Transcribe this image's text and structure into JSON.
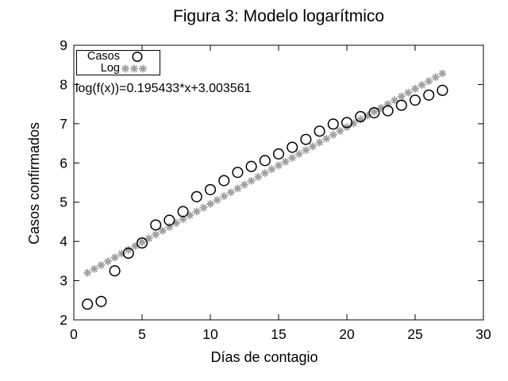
{
  "chart_data": {
    "type": "scatter",
    "title": "Figura 3: Modelo logarítmico",
    "xlabel": "Días de contagio",
    "ylabel": "Casos confirmados",
    "xlim": [
      0,
      30
    ],
    "ylim": [
      2,
      9
    ],
    "xticks": [
      0,
      5,
      10,
      15,
      20,
      25,
      30
    ],
    "yticks": [
      2,
      3,
      4,
      5,
      6,
      7,
      8,
      9
    ],
    "grid": false,
    "legend_position": "top-left",
    "annotation": "log(f(x))=0.195433*x+3.003561",
    "fit": {
      "slope": 0.195433,
      "intercept": 3.003561,
      "x_start": 1,
      "x_end": 27,
      "x_step": 0.5
    },
    "series": [
      {
        "name": "Casos",
        "marker": "open-circle",
        "color": "#000000",
        "x": [
          1,
          2,
          3,
          4,
          5,
          6,
          7,
          8,
          9,
          10,
          11,
          12,
          13,
          14,
          15,
          16,
          17,
          18,
          19,
          20,
          21,
          22,
          23,
          24,
          25,
          26,
          27
        ],
        "y": [
          2.4,
          2.47,
          3.25,
          3.7,
          3.96,
          4.42,
          4.54,
          4.76,
          5.14,
          5.32,
          5.55,
          5.76,
          5.91,
          6.06,
          6.23,
          6.4,
          6.6,
          6.81,
          6.99,
          7.03,
          7.18,
          7.28,
          7.33,
          7.47,
          7.6,
          7.73,
          7.85
        ]
      },
      {
        "name": "Log",
        "marker": "asterisk",
        "color": "#a0a0a0",
        "source": "fit"
      }
    ]
  },
  "colors": {
    "background": "#ffffff",
    "axis": "#000000",
    "casos_marker": "#000000",
    "log_marker": "#a0a0a0"
  }
}
